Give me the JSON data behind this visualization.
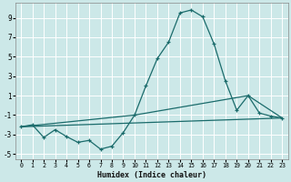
{
  "xlabel": "Humidex (Indice chaleur)",
  "bg_color": "#cce8e8",
  "grid_color": "#ffffff",
  "line_color": "#1a6b6b",
  "xlim": [
    -0.5,
    23.5
  ],
  "ylim": [
    -5.5,
    10.5
  ],
  "xticks": [
    0,
    1,
    2,
    3,
    4,
    5,
    6,
    7,
    8,
    9,
    10,
    11,
    12,
    13,
    14,
    15,
    16,
    17,
    18,
    19,
    20,
    21,
    22,
    23
  ],
  "yticks": [
    -5,
    -3,
    -1,
    1,
    3,
    5,
    7,
    9
  ],
  "line1_x": [
    0,
    1,
    2,
    3,
    4,
    5,
    6,
    7,
    8,
    9,
    10,
    11,
    12,
    13,
    14,
    15,
    16,
    17,
    18,
    19,
    20,
    21,
    22,
    23
  ],
  "line1_y": [
    -2.2,
    -2.0,
    -3.3,
    -2.5,
    -3.2,
    -3.8,
    -3.6,
    -4.5,
    -4.2,
    -2.8,
    -1.0,
    2.0,
    4.8,
    6.5,
    9.5,
    9.8,
    9.1,
    6.3,
    2.5,
    -0.5,
    1.0,
    -0.8,
    -1.1,
    -1.3
  ],
  "line2_x": [
    0,
    23
  ],
  "line2_y": [
    -2.2,
    -1.3
  ],
  "line3_x": [
    0,
    10,
    20,
    23
  ],
  "line3_y": [
    -2.2,
    -1.0,
    1.0,
    -1.3
  ]
}
